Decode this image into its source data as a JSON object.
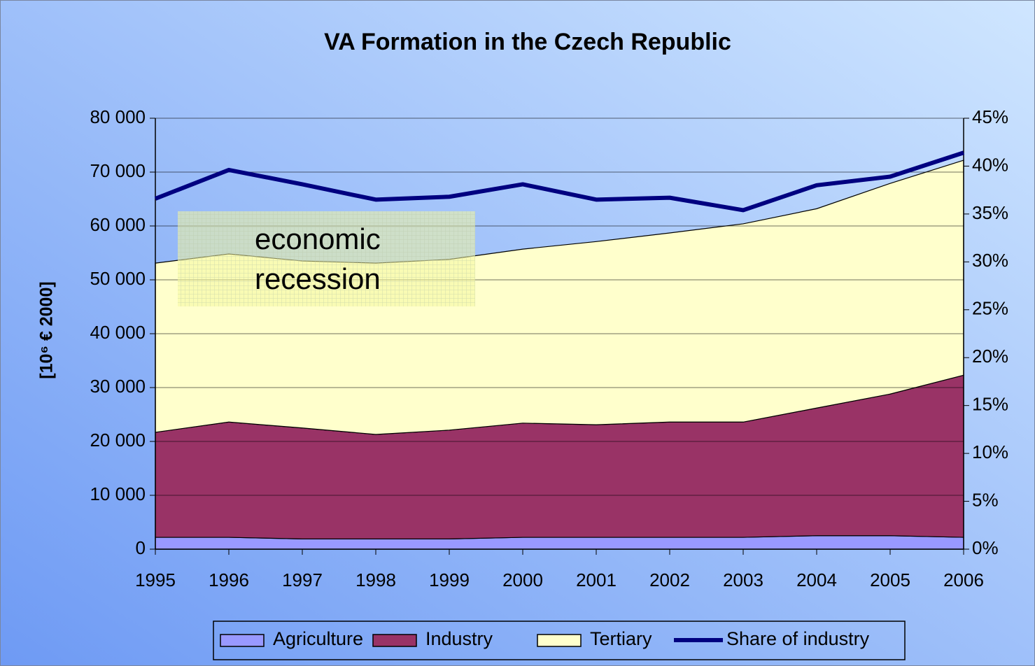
{
  "chart_data": {
    "type": "stacked_area_line",
    "title": "VA Formation in the Czech Republic",
    "y_label": "[10⁶ € 2000]",
    "annotation": [
      "economic",
      "recession"
    ],
    "categories": [
      "1995",
      "1996",
      "1997",
      "1998",
      "1999",
      "2000",
      "2001",
      "2002",
      "2003",
      "2004",
      "2005",
      "2006"
    ],
    "series": [
      {
        "name": "Agriculture",
        "color": "#9999ff",
        "values": [
          2200,
          2200,
          1900,
          1900,
          1900,
          2200,
          2200,
          2200,
          2200,
          2500,
          2500,
          2200
        ]
      },
      {
        "name": "Industry",
        "color": "#993366",
        "values": [
          19500,
          21400,
          20600,
          19400,
          20200,
          21200,
          20900,
          21400,
          21400,
          23700,
          26300,
          30100
        ]
      },
      {
        "name": "Tertiary",
        "color": "#ffffcc",
        "values": [
          31400,
          31200,
          31000,
          31800,
          31700,
          32300,
          34000,
          35100,
          36800,
          37000,
          39100,
          39900
        ]
      },
      {
        "name": "Share of industry",
        "color": "#000080",
        "axis": "y2",
        "values": [
          36.6,
          39.6,
          38.1,
          36.5,
          36.8,
          38.1,
          36.5,
          36.7,
          35.4,
          38.0,
          38.9,
          41.4
        ]
      }
    ],
    "ylim": [
      0,
      80000
    ],
    "yticks": [
      {
        "value": 0,
        "label": "0"
      },
      {
        "value": 10000,
        "label": "10 000"
      },
      {
        "value": 20000,
        "label": "20 000"
      },
      {
        "value": 30000,
        "label": "30 000"
      },
      {
        "value": 40000,
        "label": "40 000"
      },
      {
        "value": 50000,
        "label": "50 000"
      },
      {
        "value": 60000,
        "label": "60 000"
      },
      {
        "value": 70000,
        "label": "70 000"
      },
      {
        "value": 80000,
        "label": "80 000"
      }
    ],
    "y2lim": [
      0,
      45
    ],
    "y2ticks": [
      {
        "value": 0,
        "label": "0%"
      },
      {
        "value": 5,
        "label": "5%"
      },
      {
        "value": 10,
        "label": "10%"
      },
      {
        "value": 15,
        "label": "15%"
      },
      {
        "value": 20,
        "label": "20%"
      },
      {
        "value": 25,
        "label": "25%"
      },
      {
        "value": 30,
        "label": "30%"
      },
      {
        "value": 35,
        "label": "35%"
      },
      {
        "value": 40,
        "label": "40%"
      },
      {
        "value": 45,
        "label": "45%"
      }
    ],
    "grid": true
  }
}
